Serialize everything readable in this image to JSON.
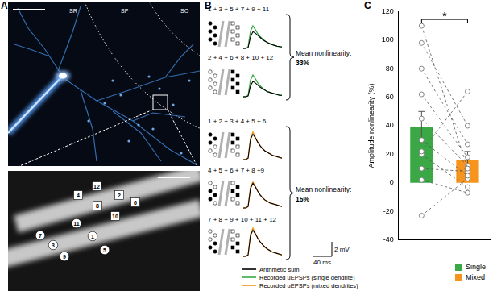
{
  "panel_a": {
    "letter": "A",
    "layers": [
      "SR",
      "SP",
      "SO"
    ],
    "sites": [
      {
        "label": "12",
        "marker": "square"
      },
      {
        "label": "2",
        "marker": "square"
      },
      {
        "label": "4",
        "marker": "square"
      },
      {
        "label": "6",
        "marker": "square"
      },
      {
        "label": "8",
        "marker": "square"
      },
      {
        "label": "10",
        "marker": "square"
      },
      {
        "label": "11",
        "marker": "circle"
      },
      {
        "label": "7",
        "marker": "circle"
      },
      {
        "label": "1",
        "marker": "circle"
      },
      {
        "label": "3",
        "marker": "circle"
      },
      {
        "label": "5",
        "marker": "circle"
      },
      {
        "label": "9",
        "marker": "circle"
      }
    ]
  },
  "panel_b": {
    "letter": "B",
    "t_ms": [
      0,
      5,
      10,
      15,
      20,
      25,
      30,
      35,
      40,
      45,
      50,
      55,
      60,
      65,
      70,
      75,
      80
    ],
    "series": [
      {
        "name": "Arithmetic sum",
        "color": "#000000"
      },
      {
        "name": "Recorded uEPSPs (single dendrite)",
        "color": "#39a845"
      },
      {
        "name": "Recorded uEPSPs (mixed dendrites)",
        "color": "#f7941d"
      }
    ],
    "groups": [
      {
        "brace_text": "Mean nonlinearity:",
        "value_text": "33%",
        "series": 1
      },
      {
        "brace_text": "Mean nonlinearity:",
        "value_text": "15%",
        "series": 2
      }
    ],
    "rows": [
      {
        "label": "1 + 3 + 5 + 7 + 9 + 11",
        "group": 0,
        "sum": [
          0,
          0,
          0.1,
          1.6,
          2.3,
          2.1,
          1.8,
          1.5,
          1.2,
          1.0,
          0.8,
          0.65,
          0.5,
          0.4,
          0.3,
          0.25,
          0.2
        ],
        "recorded": [
          0,
          0,
          0.2,
          2.4,
          3.1,
          2.6,
          2.0,
          1.6,
          1.3,
          1.0,
          0.8,
          0.6,
          0.5,
          0.4,
          0.3,
          0.25,
          0.2
        ]
      },
      {
        "label": "2 + 4 + 6 + 8 + 10 + 12",
        "group": 0,
        "sum": [
          0,
          0,
          0.1,
          1.5,
          2.1,
          1.9,
          1.6,
          1.3,
          1.1,
          0.9,
          0.7,
          0.6,
          0.5,
          0.4,
          0.3,
          0.2,
          0.2
        ],
        "recorded": [
          0,
          0,
          0.2,
          2.3,
          3.0,
          2.5,
          1.9,
          1.5,
          1.2,
          0.9,
          0.7,
          0.6,
          0.5,
          0.4,
          0.3,
          0.2,
          0.2
        ]
      },
      {
        "label": "1 + 2 + 3 + 4 + 5 + 6",
        "group": 1,
        "sum": [
          0,
          0,
          0.2,
          2.8,
          3.5,
          3.0,
          2.4,
          1.9,
          1.5,
          1.2,
          1.0,
          0.8,
          0.6,
          0.5,
          0.4,
          0.3,
          0.2
        ],
        "recorded": [
          0,
          0,
          0.2,
          3.0,
          3.8,
          3.1,
          2.4,
          1.9,
          1.5,
          1.2,
          1.0,
          0.8,
          0.6,
          0.5,
          0.4,
          0.3,
          0.2
        ]
      },
      {
        "label": "4 + 5 + 6 + 7 + 8 +9",
        "group": 1,
        "sum": [
          0,
          0,
          0.2,
          2.7,
          3.4,
          2.9,
          2.3,
          1.8,
          1.4,
          1.1,
          0.9,
          0.7,
          0.6,
          0.5,
          0.4,
          0.3,
          0.2
        ],
        "recorded": [
          0,
          0,
          0.2,
          2.9,
          3.6,
          3.0,
          2.3,
          1.8,
          1.4,
          1.1,
          0.9,
          0.7,
          0.6,
          0.5,
          0.4,
          0.3,
          0.2
        ]
      },
      {
        "label": "7 + 8 + 9 + 10 + 11 + 12",
        "group": 1,
        "sum": [
          0,
          0,
          0.2,
          2.9,
          3.6,
          3.1,
          2.5,
          2.0,
          1.6,
          1.3,
          1.0,
          0.8,
          0.6,
          0.5,
          0.4,
          0.3,
          0.2
        ],
        "recorded": [
          0,
          0,
          0.2,
          3.1,
          3.9,
          3.2,
          2.5,
          2.0,
          1.6,
          1.2,
          1.0,
          0.8,
          0.6,
          0.5,
          0.4,
          0.3,
          0.2
        ]
      }
    ],
    "scale_bar": {
      "y": {
        "value": 2,
        "label": "2 mV"
      },
      "x": {
        "value": 40,
        "label": "40 ms"
      }
    }
  },
  "chart_data": {
    "letter": "C",
    "type": "bar",
    "y_label": "Amplitude nonlinearity (%)",
    "categories": [
      "Single",
      "Mixed"
    ],
    "values": [
      39,
      16
    ],
    "errors": [
      11,
      6
    ],
    "colors": [
      "#39a845",
      "#f7941d"
    ],
    "paired_values": [
      [
        110,
        10
      ],
      [
        98,
        40
      ],
      [
        80,
        27
      ],
      [
        62,
        18
      ],
      [
        45,
        12
      ],
      [
        30,
        5
      ],
      [
        22,
        64
      ],
      [
        20,
        -3
      ],
      [
        10,
        8
      ],
      [
        2,
        -7
      ],
      [
        -23,
        3
      ]
    ],
    "ylim": [
      -40,
      120
    ],
    "yticks": [
      -40,
      -20,
      0,
      20,
      40,
      60,
      80,
      100,
      120
    ],
    "grid": false,
    "tick_labels": "y",
    "legend": "bottom right",
    "annotations": [
      {
        "text": "*"
      }
    ]
  }
}
